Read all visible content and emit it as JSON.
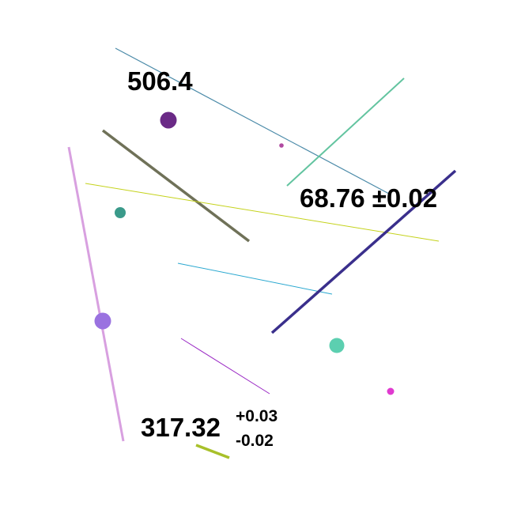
{
  "labels": {
    "value_a": "506.4",
    "value_b": "68.76 ±0.02",
    "value_c": "317.32",
    "value_c_upper": "+0.03",
    "value_c_lower": "-0.02"
  },
  "colors": {
    "background": "#ffffff",
    "text": "#000000",
    "line_steel_blue": "#4a8aa8",
    "line_seafoam": "#63c4a0",
    "line_olive_gray": "#6f7158",
    "line_lime": "#c4d21a",
    "line_orchid": "#d8a0e0",
    "line_sky": "#2aa8d0",
    "line_navy": "#3a2f8c",
    "line_violet": "#9a28c4",
    "line_yellow_green": "#a8c02a",
    "dot_plum": "#6a2a86",
    "dot_magenta_small": "#b04aa0",
    "dot_teal": "#3a9a8a",
    "dot_lavender": "#9a72e0",
    "dot_aquamarine": "#5ccfb0",
    "dot_pink": "#e03ad0"
  }
}
